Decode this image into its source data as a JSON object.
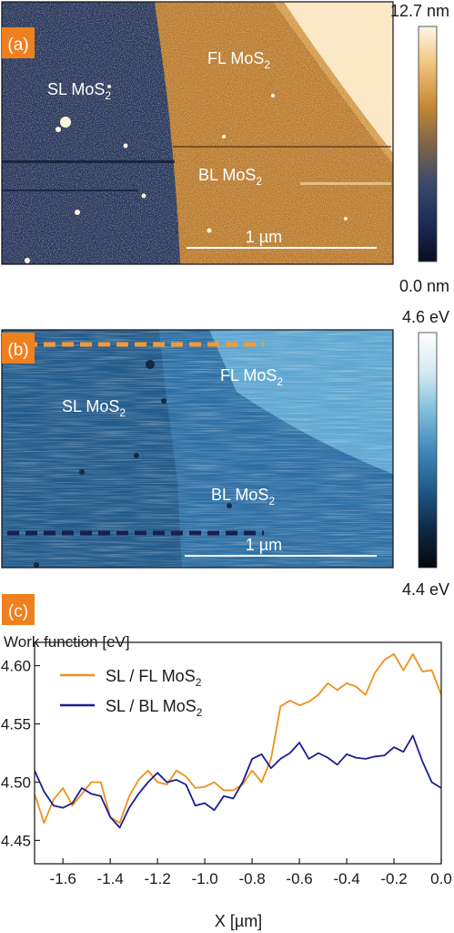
{
  "panel_a": {
    "tag": "(a)",
    "labels": {
      "sl": "SL MoS",
      "fl": "FL MoS",
      "bl": "BL MoS",
      "sub": "2"
    },
    "scalebar": "1 µm",
    "colorbar": {
      "max": "12.7 nm",
      "min": "0.0 nm"
    },
    "colors": [
      "#0b0d1e",
      "#1d2c5a",
      "#3b4a6a",
      "#7e6448",
      "#c98a33",
      "#f0c27a",
      "#fff6e6"
    ]
  },
  "panel_b": {
    "tag": "(b)",
    "labels": {
      "sl": "SL MoS",
      "fl": "FL MoS",
      "bl": "BL MoS",
      "sub": "2"
    },
    "scalebar": "1 µm",
    "colorbar": {
      "max": "4.6 eV",
      "min": "4.4 eV"
    },
    "colors": [
      "#04070d",
      "#0f2a45",
      "#1f5a8a",
      "#3f89bd",
      "#7fbedb",
      "#d6eaf2",
      "#ffffff"
    ],
    "line_colors": {
      "top": "#f29a36",
      "bottom": "#1a1f4e"
    }
  },
  "chart_data": {
    "type": "line",
    "panel_tag": "(c)",
    "ylabel": "Work function [eV]",
    "xlabel": "X [µm]",
    "xlim": [
      -1.72,
      0.0
    ],
    "ylim": [
      4.43,
      4.62
    ],
    "xticks": [
      "-1.6",
      "-1.4",
      "-1.2",
      "-1.0",
      "-0.8",
      "-0.6",
      "-0.4",
      "-0.2",
      "0.0"
    ],
    "yticks": [
      "4.45",
      "4.50",
      "4.55",
      "4.60"
    ],
    "legend_position": "top-left",
    "series": [
      {
        "name": "SL / FL MoS2",
        "label": "SL / FL MoS",
        "sub": "2",
        "color": "#f0901c",
        "x": [
          -1.72,
          -1.68,
          -1.64,
          -1.6,
          -1.56,
          -1.52,
          -1.48,
          -1.44,
          -1.4,
          -1.36,
          -1.32,
          -1.28,
          -1.24,
          -1.2,
          -1.16,
          -1.12,
          -1.08,
          -1.04,
          -1.0,
          -0.96,
          -0.92,
          -0.88,
          -0.84,
          -0.8,
          -0.76,
          -0.72,
          -0.68,
          -0.64,
          -0.6,
          -0.56,
          -0.52,
          -0.48,
          -0.44,
          -0.4,
          -0.36,
          -0.32,
          -0.28,
          -0.24,
          -0.2,
          -0.16,
          -0.12,
          -0.08,
          -0.04,
          0.0
        ],
        "y": [
          4.49,
          4.465,
          4.485,
          4.495,
          4.48,
          4.49,
          4.5,
          4.5,
          4.47,
          4.465,
          4.488,
          4.502,
          4.51,
          4.5,
          4.498,
          4.51,
          4.505,
          4.495,
          4.496,
          4.5,
          4.493,
          4.493,
          4.498,
          4.51,
          4.5,
          4.52,
          4.565,
          4.57,
          4.566,
          4.569,
          4.575,
          4.585,
          4.579,
          4.585,
          4.582,
          4.575,
          4.594,
          4.605,
          4.61,
          4.596,
          4.61,
          4.595,
          4.596,
          4.575
        ]
      },
      {
        "name": "SL / BL MoS2",
        "label": "SL / BL MoS",
        "sub": "2",
        "color": "#1d1d8f",
        "x": [
          -1.72,
          -1.68,
          -1.64,
          -1.6,
          -1.56,
          -1.52,
          -1.48,
          -1.44,
          -1.4,
          -1.36,
          -1.32,
          -1.28,
          -1.24,
          -1.2,
          -1.16,
          -1.12,
          -1.08,
          -1.04,
          -1.0,
          -0.96,
          -0.92,
          -0.88,
          -0.84,
          -0.8,
          -0.76,
          -0.72,
          -0.68,
          -0.64,
          -0.6,
          -0.56,
          -0.52,
          -0.48,
          -0.44,
          -0.4,
          -0.36,
          -0.32,
          -0.28,
          -0.24,
          -0.2,
          -0.16,
          -0.12,
          -0.08,
          -0.04,
          0.0
        ],
        "y": [
          4.51,
          4.492,
          4.48,
          4.478,
          4.482,
          4.495,
          4.49,
          4.488,
          4.47,
          4.461,
          4.478,
          4.49,
          4.5,
          4.508,
          4.5,
          4.502,
          4.498,
          4.48,
          4.482,
          4.476,
          4.488,
          4.486,
          4.5,
          4.52,
          4.524,
          4.512,
          4.52,
          4.525,
          4.534,
          4.52,
          4.525,
          4.521,
          4.515,
          4.524,
          4.521,
          4.52,
          4.522,
          4.523,
          4.53,
          4.526,
          4.54,
          4.518,
          4.5,
          4.495
        ]
      }
    ]
  }
}
